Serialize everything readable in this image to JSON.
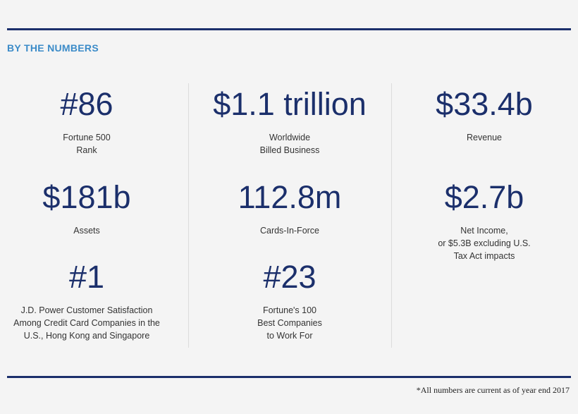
{
  "header": {
    "title": "BY THE NUMBERS"
  },
  "columns": [
    {
      "items": [
        {
          "value": "#86",
          "label": [
            "Fortune 500",
            "Rank"
          ]
        },
        {
          "value": "$181b",
          "label": [
            "Assets"
          ]
        },
        {
          "value": "#1",
          "label": [
            "J.D. Power Customer Satisfaction",
            "Among Credit Card Companies in the",
            "U.S., Hong Kong and Singapore"
          ]
        }
      ]
    },
    {
      "items": [
        {
          "value": "$1.1 trillion",
          "label": [
            "Worldwide",
            "Billed Business"
          ]
        },
        {
          "value": "112.8m",
          "label": [
            "Cards-In-Force"
          ]
        },
        {
          "value": "#23",
          "label": [
            "Fortune's 100",
            "Best Companies",
            "to Work For"
          ]
        }
      ]
    },
    {
      "items": [
        {
          "value": "$33.4b",
          "label": [
            "Revenue"
          ]
        },
        {
          "value": "$2.7b",
          "label": [
            "Net Income,",
            "or $5.3B excluding U.S.",
            "Tax Act impacts"
          ]
        }
      ]
    }
  ],
  "footnote": "*All numbers are current as of year end 2017"
}
